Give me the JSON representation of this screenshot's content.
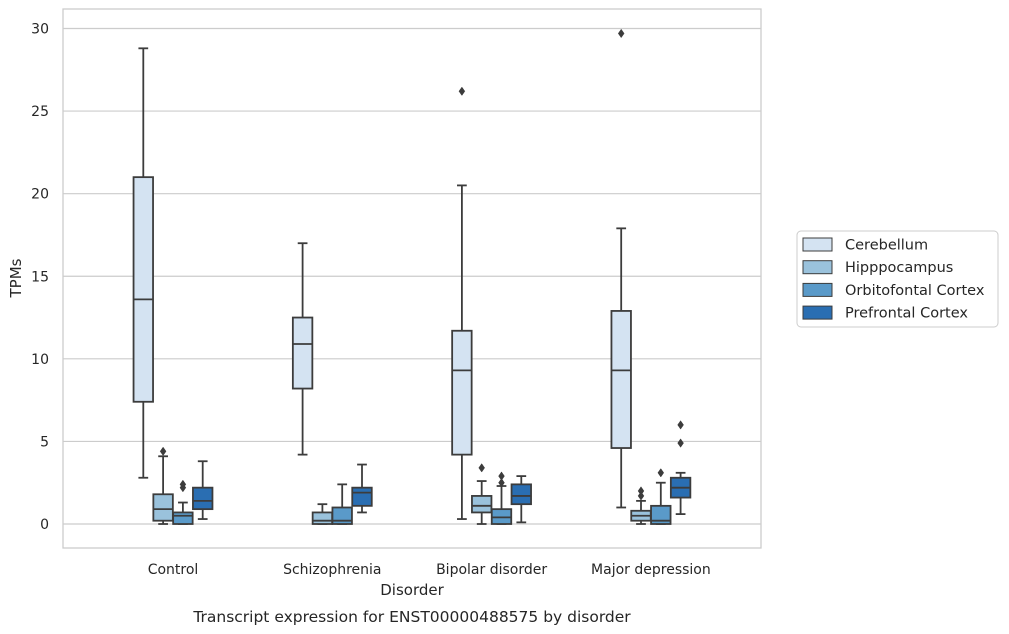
{
  "chart_data": {
    "type": "box",
    "caption": "Transcript expression for ENST00000488575 by disorder",
    "xlabel": "Disorder",
    "ylabel": "TPMs",
    "ylim": [
      -1.4,
      31.2
    ],
    "yticks": [
      0,
      5,
      10,
      15,
      20,
      25,
      30
    ],
    "grid": "horizontal",
    "legend_position": "right",
    "categories": [
      "Control",
      "Schizophrenia",
      "Bipolar disorder",
      "Major depression"
    ],
    "series": [
      {
        "name": "Cerebellum",
        "color": "#d4e3f2",
        "boxes": [
          {
            "whislo": 2.8,
            "q1": 7.4,
            "med": 13.6,
            "q3": 21.0,
            "whishi": 28.8,
            "fliers": []
          },
          {
            "whislo": 4.2,
            "q1": 8.2,
            "med": 10.9,
            "q3": 12.5,
            "whishi": 17.0,
            "fliers": []
          },
          {
            "whislo": 0.3,
            "q1": 4.2,
            "med": 9.3,
            "q3": 11.7,
            "whishi": 20.5,
            "fliers": [
              26.2
            ]
          },
          {
            "whislo": 1.0,
            "q1": 4.6,
            "med": 9.3,
            "q3": 12.9,
            "whishi": 17.9,
            "fliers": [
              29.7
            ]
          }
        ]
      },
      {
        "name": "Hipppocampus",
        "color": "#9ac2dc",
        "boxes": [
          {
            "whislo": 0.0,
            "q1": 0.2,
            "med": 0.9,
            "q3": 1.8,
            "whishi": 4.1,
            "fliers": [
              4.4
            ]
          },
          {
            "whislo": 0.0,
            "q1": 0.0,
            "med": 0.2,
            "q3": 0.7,
            "whishi": 1.2,
            "fliers": []
          },
          {
            "whislo": 0.0,
            "q1": 0.7,
            "med": 1.1,
            "q3": 1.7,
            "whishi": 2.6,
            "fliers": [
              3.4
            ]
          },
          {
            "whislo": 0.0,
            "q1": 0.2,
            "med": 0.5,
            "q3": 0.8,
            "whishi": 1.4,
            "fliers": [
              1.7,
              2.0
            ]
          }
        ]
      },
      {
        "name": "Orbitofontal Cortex",
        "color": "#5a9ac9",
        "boxes": [
          {
            "whislo": 0.0,
            "q1": 0.0,
            "med": 0.5,
            "q3": 0.7,
            "whishi": 1.3,
            "fliers": [
              2.2,
              2.4
            ]
          },
          {
            "whislo": 0.0,
            "q1": 0.0,
            "med": 0.2,
            "q3": 1.0,
            "whishi": 2.4,
            "fliers": []
          },
          {
            "whislo": 0.0,
            "q1": 0.0,
            "med": 0.4,
            "q3": 0.9,
            "whishi": 2.3,
            "fliers": [
              2.5,
              2.9
            ]
          },
          {
            "whislo": 0.0,
            "q1": 0.0,
            "med": 0.2,
            "q3": 1.1,
            "whishi": 2.5,
            "fliers": [
              3.1
            ]
          }
        ]
      },
      {
        "name": "Prefrontal Cortex",
        "color": "#2a6eb2",
        "boxes": [
          {
            "whislo": 0.3,
            "q1": 0.9,
            "med": 1.4,
            "q3": 2.2,
            "whishi": 3.8,
            "fliers": []
          },
          {
            "whislo": 0.7,
            "q1": 1.1,
            "med": 1.9,
            "q3": 2.2,
            "whishi": 3.6,
            "fliers": []
          },
          {
            "whislo": 0.1,
            "q1": 1.2,
            "med": 1.7,
            "q3": 2.4,
            "whishi": 2.9,
            "fliers": []
          },
          {
            "whislo": 0.6,
            "q1": 1.6,
            "med": 2.2,
            "q3": 2.8,
            "whishi": 3.1,
            "fliers": [
              4.9,
              6.0
            ]
          }
        ]
      }
    ]
  }
}
